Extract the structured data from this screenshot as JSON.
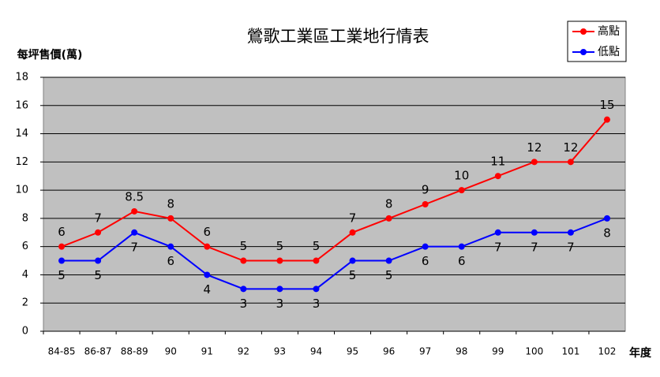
{
  "chart_data": {
    "type": "line",
    "title": "鶯歌工業區工業地行情表",
    "y_label": "每坪售價(萬)",
    "x_label": "年度",
    "categories": [
      "84-85",
      "86-87",
      "88-89",
      "90",
      "91",
      "92",
      "93",
      "94",
      "95",
      "96",
      "97",
      "98",
      "99",
      "100",
      "101",
      "102"
    ],
    "series": [
      {
        "name": "高點",
        "color": "#ff0000",
        "values": [
          6,
          7,
          8.5,
          8,
          6,
          5,
          5,
          5,
          7,
          8,
          9,
          10,
          11,
          12,
          12,
          15
        ]
      },
      {
        "name": "低點",
        "color": "#0000ff",
        "values": [
          5,
          5,
          7,
          6,
          4,
          3,
          3,
          3,
          5,
          5,
          6,
          6,
          7,
          7,
          7,
          8
        ]
      }
    ],
    "ylim": [
      0,
      18
    ],
    "yticks": [
      0,
      2,
      4,
      6,
      8,
      10,
      12,
      14,
      16,
      18
    ],
    "grid": true,
    "legend": "upper right"
  }
}
